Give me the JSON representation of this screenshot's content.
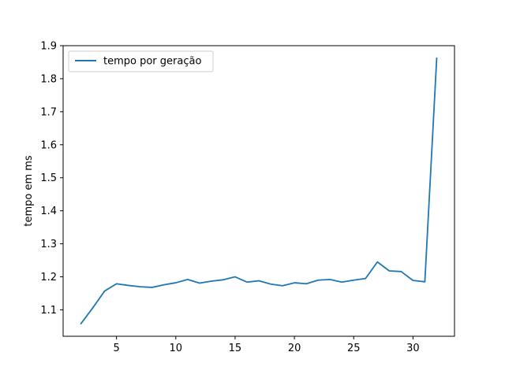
{
  "chart_data": {
    "type": "line",
    "title": "",
    "xlabel": "",
    "ylabel": "tempo em ms",
    "xlim": [
      0.5,
      33.5
    ],
    "ylim": [
      1.02,
      1.9
    ],
    "xticks": [
      5,
      10,
      15,
      20,
      25,
      30
    ],
    "yticks": [
      1.1,
      1.2,
      1.3,
      1.4,
      1.5,
      1.6,
      1.7,
      1.8,
      1.9
    ],
    "grid": false,
    "legend_position": "top-left",
    "series": [
      {
        "name": "tempo por geração",
        "color": "#1f77b4",
        "x": [
          2,
          3,
          4,
          5,
          6,
          7,
          8,
          9,
          10,
          11,
          12,
          13,
          14,
          15,
          16,
          17,
          18,
          19,
          20,
          21,
          22,
          23,
          24,
          25,
          26,
          27,
          28,
          29,
          30,
          31,
          32
        ],
        "y": [
          1.058,
          1.106,
          1.157,
          1.179,
          1.174,
          1.17,
          1.168,
          1.176,
          1.182,
          1.192,
          1.181,
          1.187,
          1.191,
          1.2,
          1.184,
          1.188,
          1.178,
          1.173,
          1.182,
          1.179,
          1.19,
          1.192,
          1.184,
          1.19,
          1.195,
          1.245,
          1.218,
          1.216,
          1.189,
          1.185,
          1.862
        ]
      }
    ]
  }
}
